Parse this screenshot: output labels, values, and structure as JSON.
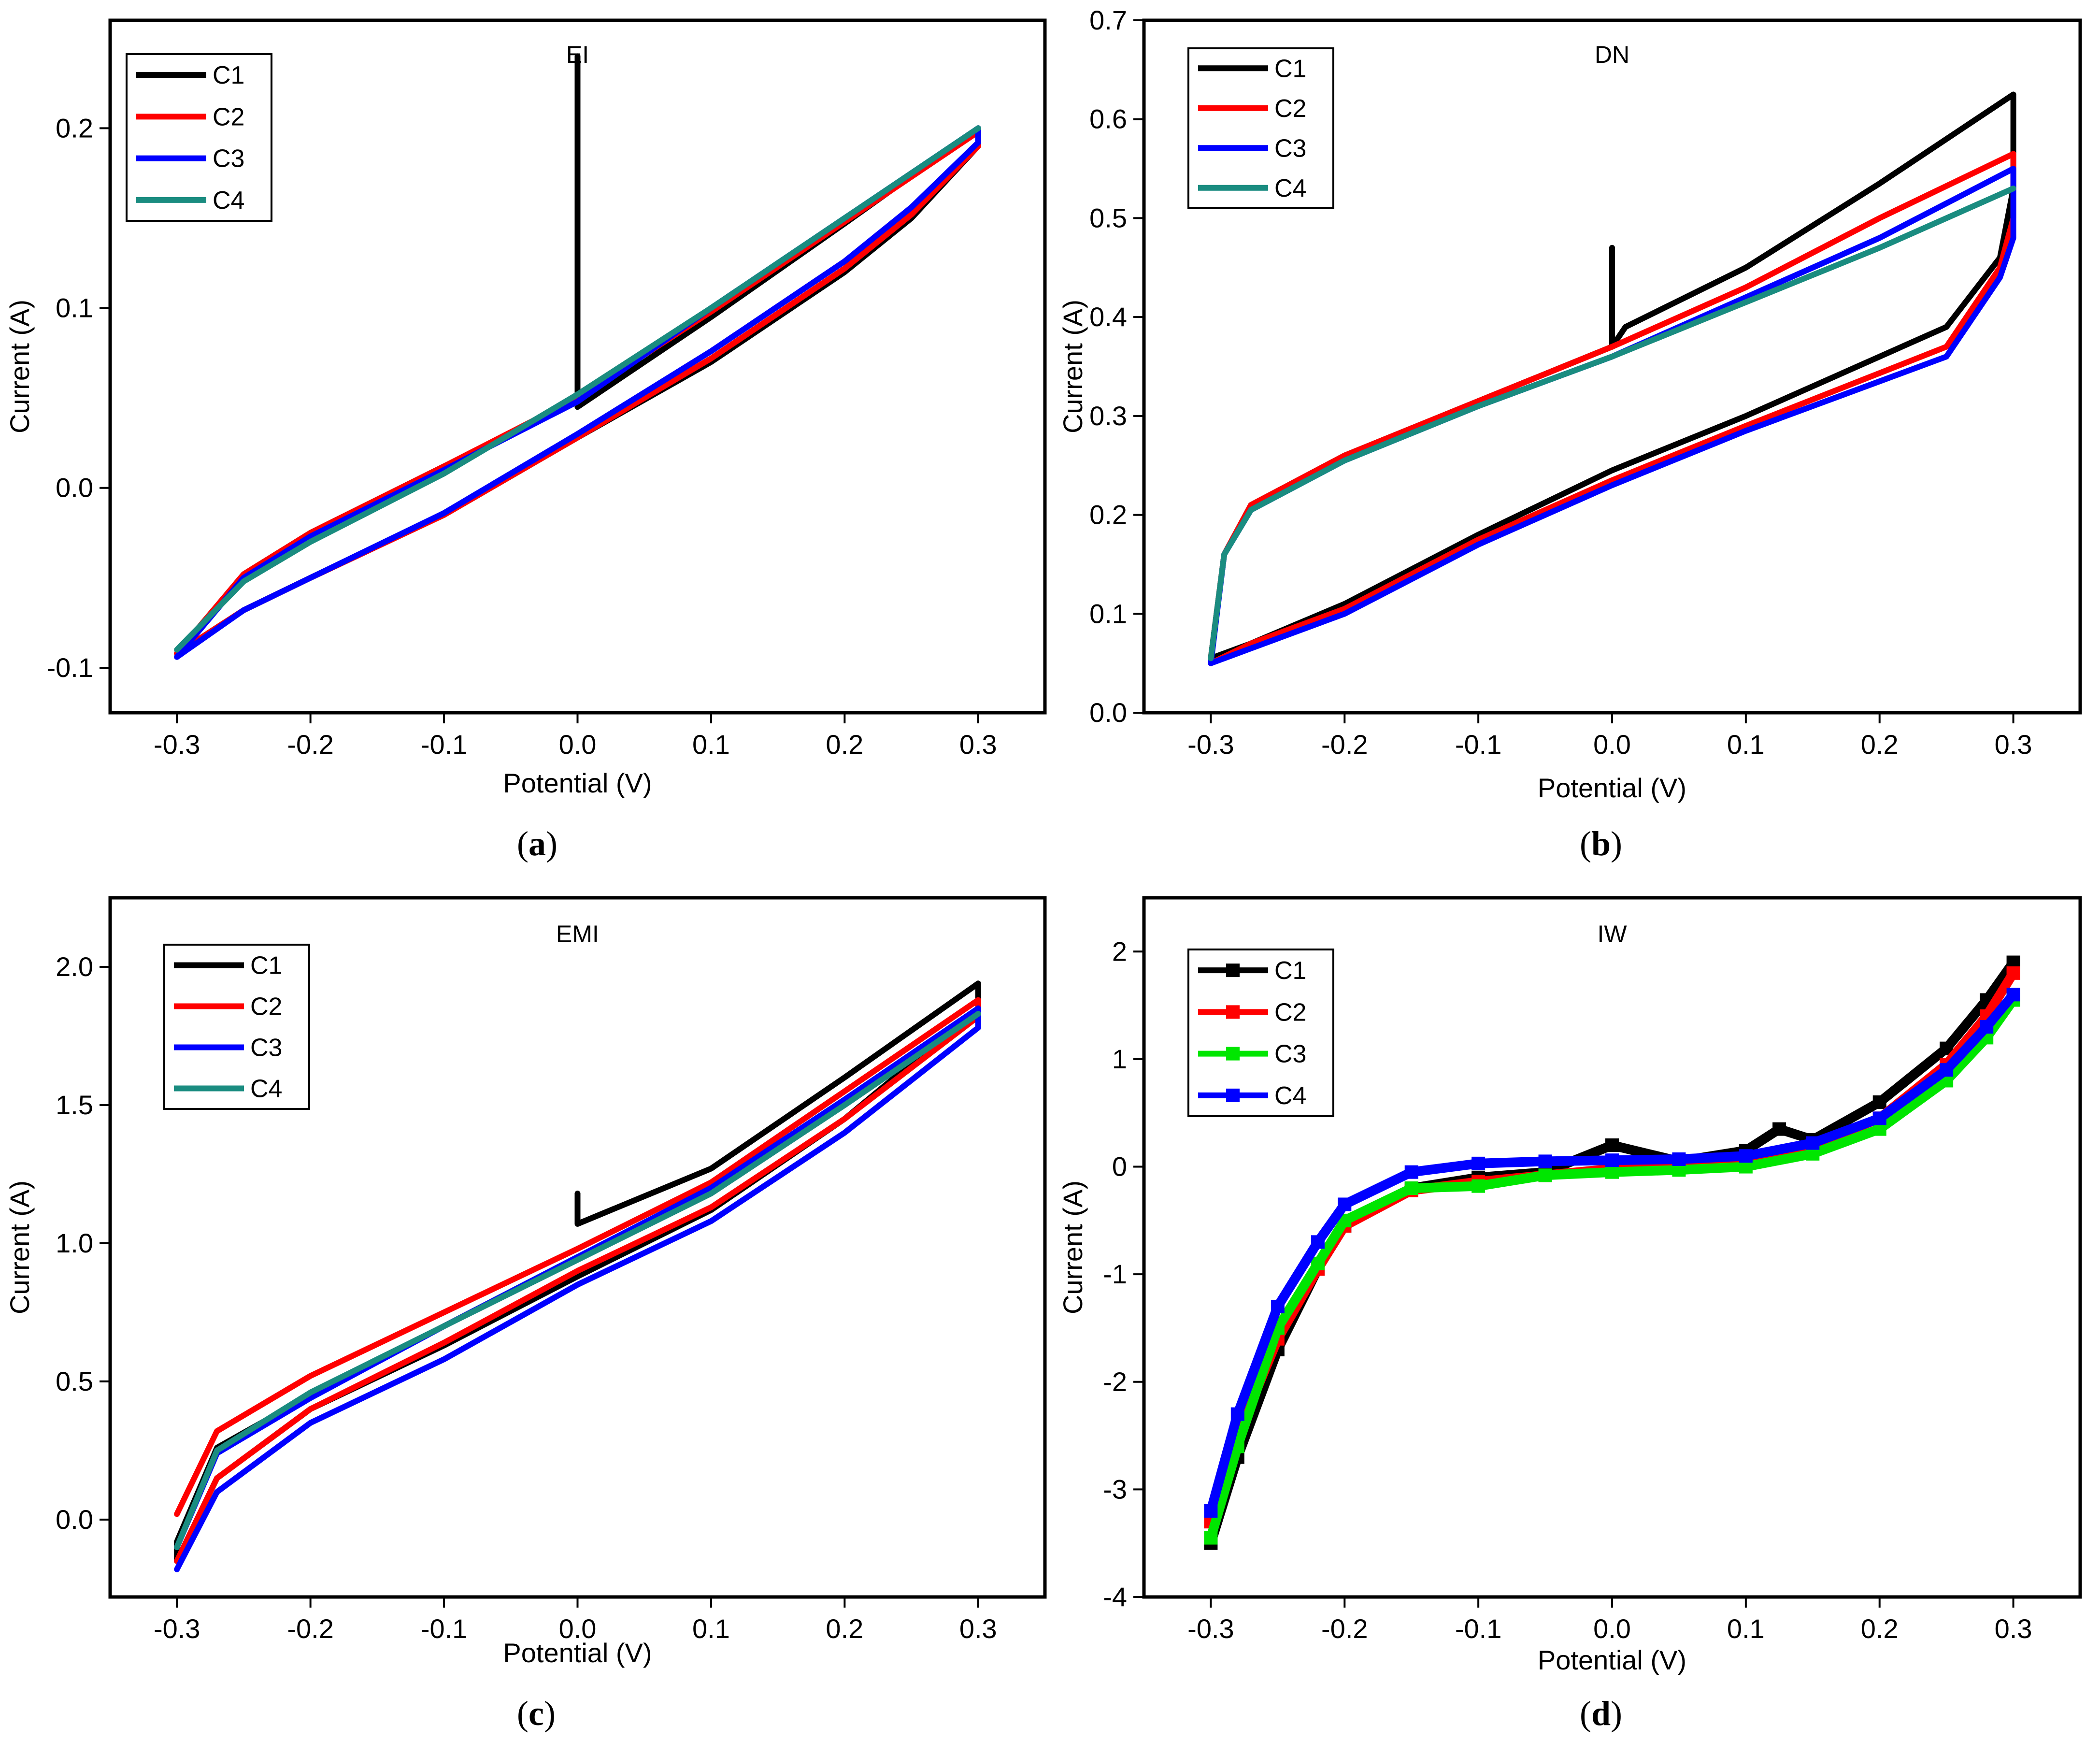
{
  "figure": {
    "panel_count": 4
  },
  "chart_data": [
    {
      "type": "line",
      "panel": "a",
      "caption_letter": "a",
      "title": "EI",
      "xlabel": "Potential (V)",
      "ylabel": "Current (A)",
      "xlim": [
        -0.35,
        0.35
      ],
      "ylim": [
        -0.125,
        0.26
      ],
      "xticks": [
        -0.3,
        -0.2,
        -0.1,
        0.0,
        0.1,
        0.2,
        0.3
      ],
      "xtick_labels": [
        "-0.3",
        "-0.2",
        "-0.1",
        "0.0",
        "0.1",
        "0.2",
        "0.3"
      ],
      "yticks": [
        -0.1,
        0.0,
        0.1,
        0.2
      ],
      "ytick_labels": [
        "-0.1",
        "0.0",
        "0.1",
        "0.2"
      ],
      "legend": {
        "position": "top-left",
        "entries": [
          "C1",
          "C2",
          "C3",
          "C4"
        ]
      },
      "series": [
        {
          "name": "C1",
          "color": "#000000",
          "marker": false,
          "x": [
            0.0,
            0.0,
            0.0,
            0.1,
            0.2,
            0.3,
            0.3,
            0.25,
            0.2,
            0.1,
            0.0,
            -0.1,
            -0.2,
            -0.25,
            -0.3,
            -0.3,
            -0.25,
            -0.2,
            -0.1,
            0.0,
            0.05
          ],
          "y": [
            0.24,
            0.14,
            0.045,
            0.095,
            0.147,
            0.2,
            0.19,
            0.15,
            0.12,
            0.07,
            0.028,
            -0.015,
            -0.05,
            -0.068,
            -0.092,
            -0.092,
            -0.048,
            -0.025,
            0.012,
            0.048,
            0.07
          ]
        },
        {
          "name": "C2",
          "color": "#ff0000",
          "marker": false,
          "x": [
            -0.3,
            -0.25,
            -0.2,
            -0.1,
            0.0,
            0.1,
            0.2,
            0.25,
            0.3,
            0.3,
            0.25,
            0.2,
            0.1,
            0.0,
            -0.1,
            -0.2,
            -0.25,
            -0.3
          ],
          "y": [
            -0.092,
            -0.048,
            -0.025,
            0.012,
            0.05,
            0.098,
            0.148,
            0.173,
            0.198,
            0.19,
            0.152,
            0.122,
            0.072,
            0.028,
            -0.015,
            -0.05,
            -0.068,
            -0.092
          ]
        },
        {
          "name": "C3",
          "color": "#0000ff",
          "marker": false,
          "x": [
            -0.3,
            -0.25,
            -0.2,
            -0.1,
            0.0,
            0.1,
            0.2,
            0.25,
            0.3,
            0.3,
            0.25,
            0.2,
            0.1,
            0.0,
            -0.1,
            -0.2,
            -0.25,
            -0.3
          ],
          "y": [
            -0.094,
            -0.05,
            -0.027,
            0.01,
            0.048,
            0.1,
            0.15,
            0.175,
            0.2,
            0.192,
            0.156,
            0.126,
            0.076,
            0.03,
            -0.014,
            -0.05,
            -0.068,
            -0.094
          ]
        },
        {
          "name": "C4",
          "color": "#1a8c80",
          "marker": false,
          "x": [
            -0.3,
            -0.25,
            -0.2,
            -0.1,
            0.0,
            0.1,
            0.2,
            0.25,
            0.3
          ],
          "y": [
            -0.09,
            -0.052,
            -0.03,
            0.008,
            0.052,
            0.1,
            0.15,
            0.175,
            0.2
          ]
        }
      ]
    },
    {
      "type": "line",
      "panel": "b",
      "caption_letter": "b",
      "title": "DN",
      "xlabel": "Potential (V)",
      "ylabel": "Current (A)",
      "xlim": [
        -0.35,
        0.35
      ],
      "ylim": [
        0.0,
        0.7
      ],
      "xticks": [
        -0.3,
        -0.2,
        -0.1,
        0.0,
        0.1,
        0.2,
        0.3
      ],
      "xtick_labels": [
        "-0.3",
        "-0.2",
        "-0.1",
        "0.0",
        "0.1",
        "0.2",
        "0.3"
      ],
      "yticks": [
        0.0,
        0.1,
        0.2,
        0.3,
        0.4,
        0.5,
        0.6,
        0.7
      ],
      "ytick_labels": [
        "0.0",
        "0.1",
        "0.2",
        "0.3",
        "0.4",
        "0.5",
        "0.6",
        "0.7"
      ],
      "legend": {
        "position": "top-left",
        "entries": [
          "C1",
          "C2",
          "C3",
          "C4"
        ]
      },
      "series": [
        {
          "name": "C1",
          "color": "#000000",
          "marker": false,
          "x": [
            0.0,
            0.0,
            0.01,
            0.1,
            0.2,
            0.3,
            0.3,
            0.29,
            0.25,
            0.1,
            0.0,
            -0.1,
            -0.2,
            -0.27,
            -0.3,
            -0.3,
            -0.29,
            -0.27,
            -0.2,
            -0.1,
            0.0
          ],
          "y": [
            0.47,
            0.37,
            0.39,
            0.45,
            0.535,
            0.625,
            0.53,
            0.46,
            0.39,
            0.3,
            0.245,
            0.18,
            0.11,
            0.07,
            0.055,
            0.055,
            0.16,
            0.21,
            0.26,
            0.315,
            0.37
          ]
        },
        {
          "name": "C2",
          "color": "#ff0000",
          "marker": false,
          "x": [
            -0.3,
            -0.29,
            -0.27,
            -0.2,
            -0.1,
            0.0,
            0.1,
            0.2,
            0.3,
            0.3,
            0.29,
            0.25,
            0.1,
            0.0,
            -0.1,
            -0.2,
            -0.27,
            -0.3
          ],
          "y": [
            0.055,
            0.16,
            0.21,
            0.26,
            0.315,
            0.37,
            0.43,
            0.5,
            0.565,
            0.5,
            0.45,
            0.37,
            0.29,
            0.235,
            0.175,
            0.105,
            0.07,
            0.05
          ]
        },
        {
          "name": "C3",
          "color": "#0000ff",
          "marker": false,
          "x": [
            -0.3,
            -0.29,
            -0.27,
            -0.2,
            -0.1,
            0.0,
            0.1,
            0.2,
            0.3,
            0.3,
            0.29,
            0.25,
            0.1,
            0.0,
            -0.1,
            -0.2,
            -0.27,
            -0.3
          ],
          "y": [
            0.05,
            0.16,
            0.205,
            0.255,
            0.31,
            0.36,
            0.42,
            0.48,
            0.55,
            0.48,
            0.44,
            0.36,
            0.285,
            0.23,
            0.17,
            0.1,
            0.065,
            0.05
          ]
        },
        {
          "name": "C4",
          "color": "#1a8c80",
          "marker": false,
          "x": [
            -0.3,
            -0.29,
            -0.27,
            -0.2,
            -0.1,
            0.0,
            0.1,
            0.2,
            0.3
          ],
          "y": [
            0.055,
            0.16,
            0.205,
            0.255,
            0.31,
            0.36,
            0.415,
            0.47,
            0.53
          ]
        }
      ]
    },
    {
      "type": "line",
      "panel": "c",
      "caption_letter": "c",
      "title": "EMI",
      "xlabel": "Potential (V)",
      "ylabel": "Current (A)",
      "xlim": [
        -0.35,
        0.35
      ],
      "ylim": [
        -0.28,
        2.25
      ],
      "xticks": [
        -0.3,
        -0.2,
        -0.1,
        0.0,
        0.1,
        0.2,
        0.3
      ],
      "xtick_labels": [
        "-0.3",
        "-0.2",
        "-0.1",
        "0.0",
        "0.1",
        "0.2",
        "0.3"
      ],
      "yticks": [
        0.0,
        0.5,
        1.0,
        1.5,
        2.0
      ],
      "ytick_labels": [
        "0.0",
        "0.5",
        "1.0",
        "1.5",
        "2.0"
      ],
      "legend": {
        "position": "top-left",
        "entries": [
          "C1",
          "C2",
          "C3",
          "C4"
        ]
      },
      "series": [
        {
          "name": "C1",
          "color": "#000000",
          "marker": false,
          "x": [
            0.0,
            0.0,
            0.05,
            0.1,
            0.2,
            0.3,
            0.3,
            0.2,
            0.1,
            0.0,
            -0.1,
            -0.2,
            -0.27,
            -0.3,
            -0.3,
            -0.27,
            -0.2,
            -0.1,
            0.0
          ],
          "y": [
            1.18,
            1.07,
            1.17,
            1.27,
            1.6,
            1.94,
            1.85,
            1.45,
            1.12,
            0.88,
            0.63,
            0.4,
            0.15,
            -0.15,
            -0.08,
            0.26,
            0.45,
            0.7,
            0.95
          ]
        },
        {
          "name": "C2",
          "color": "#ff0000",
          "marker": false,
          "x": [
            -0.3,
            -0.27,
            -0.2,
            -0.1,
            0.0,
            0.1,
            0.2,
            0.3,
            0.3,
            0.2,
            0.1,
            0.0,
            -0.1,
            -0.2,
            -0.27,
            -0.3
          ],
          "y": [
            0.02,
            0.32,
            0.52,
            0.75,
            0.98,
            1.22,
            1.55,
            1.88,
            1.82,
            1.45,
            1.13,
            0.9,
            0.64,
            0.4,
            0.15,
            -0.15
          ]
        },
        {
          "name": "C3",
          "color": "#0000ff",
          "marker": false,
          "x": [
            -0.3,
            -0.27,
            -0.2,
            -0.1,
            0.0,
            0.1,
            0.2,
            0.3,
            0.3,
            0.2,
            0.1,
            0.0,
            -0.1,
            -0.2,
            -0.27,
            -0.3
          ],
          "y": [
            -0.1,
            0.24,
            0.44,
            0.7,
            0.95,
            1.2,
            1.52,
            1.85,
            1.78,
            1.4,
            1.08,
            0.85,
            0.58,
            0.35,
            0.1,
            -0.18
          ]
        },
        {
          "name": "C4",
          "color": "#1a8c80",
          "marker": false,
          "x": [
            -0.3,
            -0.27,
            -0.2,
            -0.1,
            0.0,
            0.1,
            0.2,
            0.3
          ],
          "y": [
            -0.1,
            0.25,
            0.46,
            0.7,
            0.94,
            1.18,
            1.5,
            1.83
          ]
        }
      ]
    },
    {
      "type": "line",
      "panel": "d",
      "caption_letter": "d",
      "title": "IW",
      "xlabel": "Potential (V)",
      "ylabel": "Current (A)",
      "xlim": [
        -0.35,
        0.35
      ],
      "ylim": [
        -4.0,
        2.5
      ],
      "xticks": [
        -0.3,
        -0.2,
        -0.1,
        0.0,
        0.1,
        0.2,
        0.3
      ],
      "xtick_labels": [
        "-0.3",
        "-0.2",
        "-0.1",
        "0.0",
        "0.1",
        "0.2",
        "0.3"
      ],
      "yticks": [
        -4,
        -3,
        -2,
        -1,
        0,
        1,
        2
      ],
      "ytick_labels": [
        "-4",
        "-3",
        "-2",
        "-1",
        "0",
        "1",
        "2"
      ],
      "legend": {
        "position": "top-left",
        "entries": [
          "C1",
          "C2",
          "C3",
          "C4"
        ]
      },
      "series": [
        {
          "name": "C1",
          "color": "#000000",
          "marker": true,
          "x": [
            -0.3,
            -0.28,
            -0.25,
            -0.22,
            -0.2,
            -0.15,
            -0.1,
            -0.05,
            0.0,
            0.05,
            0.1,
            0.125,
            0.15,
            0.2,
            0.25,
            0.28,
            0.3
          ],
          "y": [
            -3.5,
            -2.7,
            -1.7,
            -0.95,
            -0.55,
            -0.2,
            -0.1,
            -0.05,
            0.2,
            0.05,
            0.15,
            0.35,
            0.25,
            0.6,
            1.1,
            1.55,
            1.9
          ]
        },
        {
          "name": "C2",
          "color": "#ff0000",
          "marker": true,
          "x": [
            -0.3,
            -0.28,
            -0.25,
            -0.22,
            -0.2,
            -0.15,
            -0.1,
            -0.05,
            0.0,
            0.05,
            0.1,
            0.15,
            0.2,
            0.25,
            0.28,
            0.3
          ],
          "y": [
            -3.3,
            -2.5,
            -1.6,
            -0.95,
            -0.55,
            -0.22,
            -0.14,
            -0.08,
            -0.02,
            0.0,
            0.08,
            0.2,
            0.45,
            0.95,
            1.4,
            1.8
          ]
        },
        {
          "name": "C3",
          "color": "#00e600",
          "marker": true,
          "x": [
            -0.3,
            -0.28,
            -0.25,
            -0.22,
            -0.2,
            -0.15,
            -0.1,
            -0.05,
            0.0,
            0.05,
            0.1,
            0.15,
            0.2,
            0.25,
            0.28,
            0.3
          ],
          "y": [
            -3.45,
            -2.6,
            -1.5,
            -0.9,
            -0.5,
            -0.2,
            -0.18,
            -0.08,
            -0.05,
            -0.03,
            0.0,
            0.12,
            0.35,
            0.8,
            1.2,
            1.55
          ]
        },
        {
          "name": "C4",
          "color": "#0000ff",
          "marker": true,
          "x": [
            -0.3,
            -0.28,
            -0.25,
            -0.22,
            -0.2,
            -0.15,
            -0.1,
            -0.05,
            0.0,
            0.05,
            0.1,
            0.15,
            0.2,
            0.25,
            0.28,
            0.3
          ],
          "y": [
            -3.2,
            -2.3,
            -1.3,
            -0.7,
            -0.35,
            -0.05,
            0.03,
            0.05,
            0.06,
            0.07,
            0.1,
            0.22,
            0.45,
            0.9,
            1.3,
            1.6
          ]
        }
      ]
    }
  ]
}
